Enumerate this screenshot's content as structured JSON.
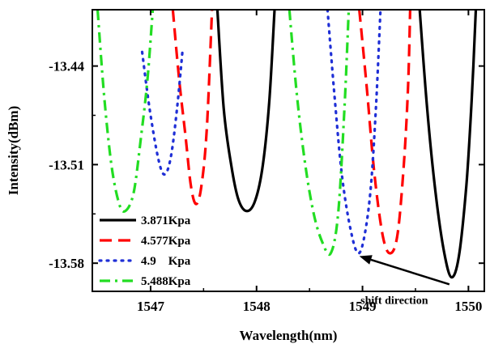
{
  "chart_data": {
    "type": "line",
    "xlabel": "Wavelength(nm)",
    "ylabel": "Intensity(dBm)",
    "xlim": [
      1546.45,
      1550.15
    ],
    "ylim": [
      -13.6,
      -13.4
    ],
    "xticks": [
      1547,
      1548,
      1549,
      1550
    ],
    "xtick_labels": [
      "1547",
      "1548",
      "1549",
      "1550"
    ],
    "yticks": [
      -13.44,
      -13.51,
      -13.58
    ],
    "ytick_labels": [
      "-13.44",
      "-13.51",
      "-13.58"
    ],
    "grid": false,
    "legend_position": "bottom-left",
    "series": [
      {
        "name": "3.871Kpa",
        "color": "#000000",
        "dash": "solid",
        "troughs": [
          {
            "x": [
              1547.63,
              1547.69,
              1547.76,
              1547.83,
              1547.91,
              1547.99,
              1548.06,
              1548.12,
              1548.17
            ],
            "y": [
              -13.4,
              -13.47,
              -13.51,
              -13.535,
              -13.543,
              -13.535,
              -13.51,
              -13.465,
              -13.4
            ]
          },
          {
            "x": [
              1549.54,
              1549.61,
              1549.69,
              1549.77,
              1549.84,
              1549.91,
              1549.98,
              1550.03,
              1550.07
            ],
            "y": [
              -13.4,
              -13.47,
              -13.53,
              -13.572,
              -13.59,
              -13.575,
              -13.525,
              -13.465,
              -13.4
            ]
          }
        ]
      },
      {
        "name": "4.577Kpa",
        "color": "#ff0000",
        "dash": "dashed",
        "troughs": [
          {
            "x": [
              1547.21,
              1547.27,
              1547.33,
              1547.38,
              1547.43,
              1547.48,
              1547.53,
              1547.58
            ],
            "y": [
              -13.4,
              -13.45,
              -13.49,
              -13.525,
              -13.538,
              -13.525,
              -13.485,
              -13.4
            ]
          },
          {
            "x": [
              1548.97,
              1549.04,
              1549.11,
              1549.19,
              1549.26,
              1549.33,
              1549.39,
              1549.43,
              1549.45
            ],
            "y": [
              -13.4,
              -13.455,
              -13.515,
              -13.56,
              -13.573,
              -13.56,
              -13.51,
              -13.455,
              -13.4
            ]
          }
        ]
      },
      {
        "name": "4.9    Kpa",
        "color": "#1f2fd6",
        "dash": "dotted",
        "troughs": [
          {
            "x": [
              1546.92,
              1546.99,
              1547.07,
              1547.13,
              1547.19,
              1547.25,
              1547.3
            ],
            "y": [
              -13.43,
              -13.47,
              -13.505,
              -13.517,
              -13.505,
              -13.47,
              -13.43
            ]
          },
          {
            "x": [
              1548.67,
              1548.74,
              1548.81,
              1548.89,
              1548.96,
              1549.02,
              1549.08,
              1549.13,
              1549.17
            ],
            "y": [
              -13.4,
              -13.465,
              -13.52,
              -13.557,
              -13.573,
              -13.56,
              -13.525,
              -13.465,
              -13.4
            ]
          }
        ]
      },
      {
        "name": "5.488Kpa",
        "color": "#22dd22",
        "dash": "dashdot",
        "troughs": [
          {
            "x": [
              1546.5,
              1546.56,
              1546.63,
              1546.7,
              1546.76,
              1546.84,
              1546.91,
              1546.97,
              1547.02
            ],
            "y": [
              -13.4,
              -13.46,
              -13.51,
              -13.537,
              -13.543,
              -13.53,
              -13.49,
              -13.45,
              -13.4
            ]
          },
          {
            "x": [
              1548.31,
              1548.38,
              1548.46,
              1548.54,
              1548.62,
              1548.7,
              1548.77,
              1548.83,
              1548.87
            ],
            "y": [
              -13.4,
              -13.46,
              -13.51,
              -13.545,
              -13.565,
              -13.573,
              -13.545,
              -13.47,
              -13.4
            ]
          }
        ]
      }
    ],
    "annotations": [
      {
        "text": "shift direction",
        "x": 1549.3,
        "y": -13.595,
        "arrow_from": [
          1549.82,
          -13.595
        ],
        "arrow_to": [
          1548.97,
          -13.575
        ]
      }
    ]
  }
}
